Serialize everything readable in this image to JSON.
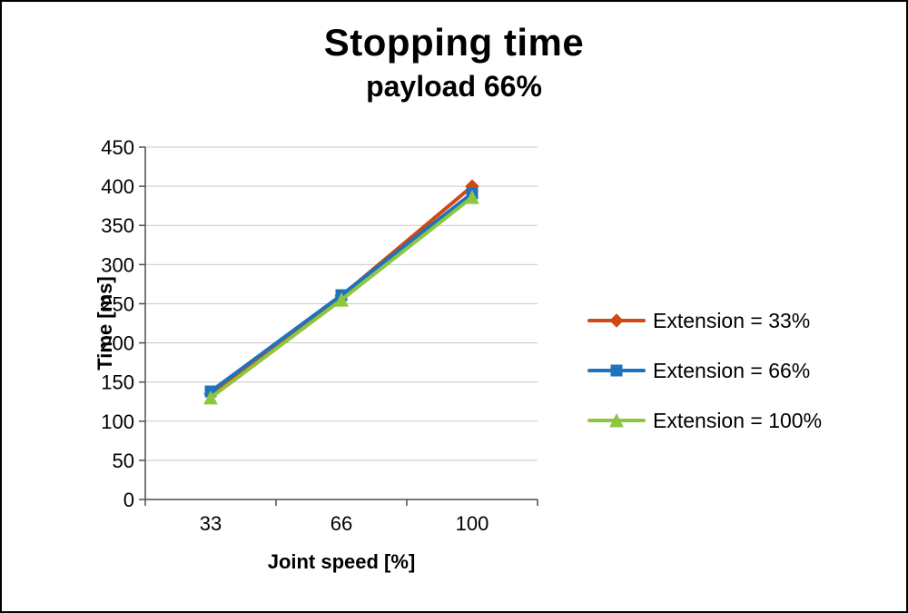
{
  "chart_data": {
    "type": "line",
    "title": "Stopping time",
    "subtitle": "payload 66%",
    "xlabel": "Joint speed [%]",
    "ylabel": "Time [ms]",
    "categories": [
      "33",
      "66",
      "100"
    ],
    "ylim": [
      0,
      450
    ],
    "ytick_step": 50,
    "grid": true,
    "legend_position": "right",
    "axis_color": "#4d4d4d",
    "grid_color": "#c9c9c9",
    "series": [
      {
        "name": "Extension = 33%",
        "marker": "diamond",
        "color": "#d14813",
        "values": [
          135,
          260,
          400
        ]
      },
      {
        "name": "Extension = 66%",
        "marker": "square",
        "color": "#1e73be",
        "values": [
          138,
          261,
          391
        ]
      },
      {
        "name": "Extension = 100%",
        "marker": "triangle",
        "color": "#8dc63f",
        "values": [
          130,
          255,
          386
        ]
      }
    ]
  }
}
